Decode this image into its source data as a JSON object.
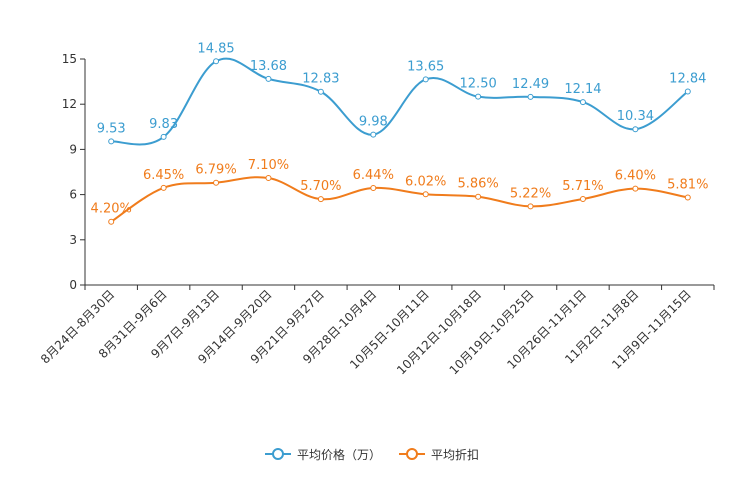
{
  "chart_data": {
    "type": "line",
    "title": "",
    "xlabel": "",
    "ylabel": "",
    "ylim": [
      0,
      15
    ],
    "yticks": [
      "0",
      "3",
      "6",
      "9",
      "12",
      "15"
    ],
    "categories": [
      "8月24日-8月30日",
      "8月31日-9月6日",
      "9月7日-9月13日",
      "9月14日-9月20日",
      "9月21日-9月27日",
      "9月28日-10月4日",
      "10月5日-10月11日",
      "10月12日-10月18日",
      "10月19日-10月25日",
      "10月26日-11月1日",
      "11月2日-11月8日",
      "11月9日-11月15日"
    ],
    "series": [
      {
        "name": "平均价格（万）",
        "color": "#3c9dd0",
        "values": [
          9.53,
          9.83,
          14.85,
          13.68,
          12.83,
          9.98,
          13.65,
          12.5,
          12.49,
          12.14,
          10.34,
          12.84
        ],
        "labels": [
          "9.53",
          "9.83",
          "14.85",
          "13.68",
          "12.83",
          "9.98",
          "13.65",
          "12.50",
          "12.49",
          "12.14",
          "10.34",
          "12.84"
        ]
      },
      {
        "name": "平均折扣",
        "color": "#f07c1c",
        "values": [
          4.2,
          6.45,
          6.79,
          7.1,
          5.7,
          6.44,
          6.02,
          5.86,
          5.22,
          5.71,
          6.4,
          5.81
        ],
        "labels": [
          "4.20%",
          "6.45%",
          "6.79%",
          "7.10%",
          "5.70%",
          "6.44%",
          "6.02%",
          "5.86%",
          "5.22%",
          "5.71%",
          "6.40%",
          "5.81%"
        ]
      }
    ],
    "legend_position": "bottom"
  }
}
